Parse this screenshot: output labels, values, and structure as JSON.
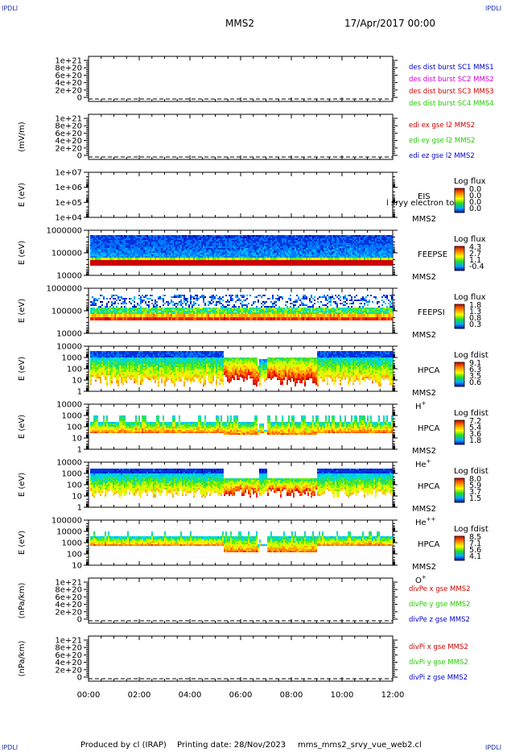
{
  "corner_labels": {
    "top_left": "IPDLI",
    "top_right": "IPDLI",
    "bottom_left": "IPDLI",
    "bottom_right": "IPDLI"
  },
  "header": {
    "spacecraft": "MMS2",
    "date": "17/Apr/2017 00:00"
  },
  "footer": {
    "producer": "Produced by cl (IRAP)",
    "printing": "Printing date: 28/Nov/2023",
    "script": "mms_mms2_srvy_vue_web2.cl"
  },
  "colors": {
    "red": "#cc0000",
    "magenta": "#cc00cc",
    "green": "#22cc00",
    "blue": "#0000cc",
    "dark_red": "#aa0000"
  },
  "chart_data": [
    {
      "id": "des-dist",
      "type": "line",
      "ylabel": "",
      "yticks": [
        "1e+21",
        "8e+20",
        "6e+20",
        "4e+20",
        "2e+20",
        "0"
      ],
      "legend": [
        {
          "label": "des dist burst SC1 MMS1",
          "color": "#0000cc"
        },
        {
          "label": "des dist burst SC2 MMS2",
          "color": "#cc00cc"
        },
        {
          "label": "des dist burst SC3 MMS3",
          "color": "#cc0000"
        },
        {
          "label": "des dist burst SC4 MMS4",
          "color": "#22cc00"
        }
      ],
      "series": []
    },
    {
      "id": "edi-e",
      "type": "line",
      "ylabel": "(mV/m)",
      "yticks": [
        "1e+21",
        "8e+20",
        "6e+20",
        "4e+20",
        "2e+20",
        "0"
      ],
      "legend": [
        {
          "label": "edi ex gse l2 MMS2",
          "color": "#cc0000"
        },
        {
          "label": "edi ey gse l2 MMS2",
          "color": "#22cc00"
        },
        {
          "label": "edi ez gse l2 MMS2",
          "color": "#0000cc"
        }
      ],
      "series": []
    },
    {
      "id": "eis",
      "type": "heatmap",
      "ylabel": "E (eV)",
      "yticks": [
        "1e+07",
        "1e+06",
        "1e+05",
        "1e+04"
      ],
      "instrument": [
        "EIS",
        "MMS2"
      ],
      "overlay_label": "l sryy electron to",
      "colorbar": {
        "title": "Log flux",
        "ticks": [
          "0.0",
          "0.0",
          "0.0",
          "0.0"
        ]
      },
      "fill": "none"
    },
    {
      "id": "feeps-e",
      "type": "heatmap",
      "ylabel": "E (eV)",
      "yticks": [
        "1000000",
        "100000",
        "10000"
      ],
      "instrument": [
        "FEEPSE",
        "MMS2"
      ],
      "colorbar": {
        "title": "Log flux",
        "ticks": [
          "4.3",
          "2.7",
          "1.1",
          "-0.4"
        ]
      },
      "fill": "feepse"
    },
    {
      "id": "feeps-i",
      "type": "heatmap",
      "ylabel": "E (eV)",
      "yticks": [
        "1000000",
        "100000",
        "10000"
      ],
      "instrument": [
        "FEEPSI",
        "MMS2"
      ],
      "colorbar": {
        "title": "Log flux",
        "ticks": [
          "1.8",
          "1.3",
          "0.8",
          "0.3"
        ]
      },
      "fill": "feepsi"
    },
    {
      "id": "hpca-h",
      "type": "heatmap",
      "ylabel": "E (eV)",
      "yticks": [
        "10000",
        "1000",
        "100",
        "10",
        "1"
      ],
      "instrument": [
        "HPCA",
        "MMS2"
      ],
      "species": {
        "base": "H",
        "sup": "+"
      },
      "colorbar": {
        "title": "Log fdist",
        "ticks": [
          "9.1",
          "6.3",
          "3.5",
          "0.6"
        ]
      },
      "fill": "hpca-h"
    },
    {
      "id": "hpca-he1",
      "type": "heatmap",
      "ylabel": "E (eV)",
      "yticks": [
        "10000",
        "1000",
        "100",
        "10",
        "1"
      ],
      "instrument": [
        "HPCA",
        "MMS2"
      ],
      "species": {
        "base": "He",
        "sup": "+"
      },
      "colorbar": {
        "title": "Log fdist",
        "ticks": [
          "7.2",
          "5.4",
          "3.6",
          "1.8"
        ]
      },
      "fill": "hpca-he1"
    },
    {
      "id": "hpca-he2",
      "type": "heatmap",
      "ylabel": "E (eV)",
      "yticks": [
        "10000",
        "1000",
        "100",
        "10",
        "1"
      ],
      "instrument": [
        "HPCA",
        "MMS2"
      ],
      "species": {
        "base": "He",
        "sup": "++"
      },
      "colorbar": {
        "title": "Log fdist",
        "ticks": [
          "8.0",
          "5.9",
          "3.7",
          "1.5"
        ]
      },
      "fill": "hpca-he2"
    },
    {
      "id": "hpca-o",
      "type": "heatmap",
      "ylabel": "E (eV)",
      "yticks": [
        "100000",
        "10000",
        "1000",
        "100",
        "10"
      ],
      "instrument": [
        "HPCA",
        "MMS2"
      ],
      "species": {
        "base": "O",
        "sup": "+"
      },
      "colorbar": {
        "title": "Log fdist",
        "ticks": [
          "8.5",
          "7.1",
          "5.6",
          "4.1"
        ]
      },
      "fill": "hpca-o"
    },
    {
      "id": "divpe",
      "type": "line",
      "ylabel": "(nPa/km)",
      "yticks": [
        "1e+21",
        "8e+20",
        "6e+20",
        "4e+20",
        "2e+20",
        "0"
      ],
      "legend": [
        {
          "label": "divPe x gse MMS2",
          "color": "#cc0000"
        },
        {
          "label": "divPe y gse MMS2",
          "color": "#22cc00"
        },
        {
          "label": "divPe z gse MMS2",
          "color": "#0000cc"
        }
      ],
      "series": []
    },
    {
      "id": "divpi",
      "type": "line",
      "ylabel": "(nPa/km)",
      "yticks": [
        "1e+21",
        "8e+20",
        "6e+20",
        "4e+20",
        "2e+20",
        "0"
      ],
      "legend": [
        {
          "label": "divPi x gse MMS2",
          "color": "#cc0000"
        },
        {
          "label": "divPi y gse MMS2",
          "color": "#22cc00"
        },
        {
          "label": "divPi z gse MMS2",
          "color": "#0000cc"
        }
      ],
      "series": []
    }
  ],
  "x_axis": {
    "ticks": [
      "00:00",
      "02:00",
      "04:00",
      "06:00",
      "08:00",
      "10:00",
      "12:00"
    ]
  }
}
